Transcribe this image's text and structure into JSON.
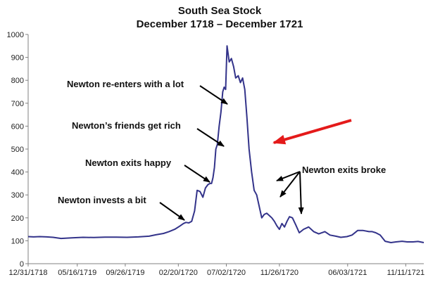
{
  "chart_data": {
    "type": "line",
    "title": "South Sea Stock",
    "subtitle": "December 1718 – December 1721",
    "xlabel": "",
    "ylabel": "",
    "ylim": [
      0,
      1000
    ],
    "yticks": [
      0,
      100,
      200,
      300,
      400,
      500,
      600,
      700,
      800,
      900,
      1000
    ],
    "xlim": [
      "1718-12-31",
      "1721-12-31"
    ],
    "xticks": [
      {
        "date": "1718-12-31",
        "label": "12/31/1718"
      },
      {
        "date": "1719-05-16",
        "label": "05/16/1719"
      },
      {
        "date": "1719-09-26",
        "label": "09/26/1719"
      },
      {
        "date": "1720-02-20",
        "label": "02/20/1720"
      },
      {
        "date": "1720-07-02",
        "label": "07/02/1720"
      },
      {
        "date": "1720-11-26",
        "label": "11/26/1720"
      },
      {
        "date": "1721-06-03",
        "label": "06/03/1721"
      },
      {
        "date": "1721-11-11",
        "label": "11/11/1721"
      }
    ],
    "grid": false,
    "line_color": "#33338a",
    "arrow_color": "#e41a1a",
    "series": [
      {
        "x": [
          "1718-12-31",
          "1719-01-15",
          "1719-02-01",
          "1719-02-20",
          "1719-03-10",
          "1719-04-01",
          "1719-05-01",
          "1719-06-01",
          "1719-07-01",
          "1719-08-01",
          "1719-09-01",
          "1719-10-01",
          "1719-11-01",
          "1719-12-01",
          "1719-12-20",
          "1720-01-10",
          "1720-01-25",
          "1720-02-10",
          "1720-02-25",
          "1720-03-05",
          "1720-03-12",
          "1720-03-20",
          "1720-03-28",
          "1720-04-05",
          "1720-04-12",
          "1720-04-20",
          "1720-04-28",
          "1720-05-05",
          "1720-05-12",
          "1720-05-18",
          "1720-05-22",
          "1720-05-26",
          "1720-05-30",
          "1720-06-03",
          "1720-06-07",
          "1720-06-12",
          "1720-06-17",
          "1720-06-22",
          "1720-06-26",
          "1720-06-30",
          "1720-07-04",
          "1720-07-10",
          "1720-07-16",
          "1720-07-22",
          "1720-07-28",
          "1720-08-04",
          "1720-08-10",
          "1720-08-16",
          "1720-08-22",
          "1720-08-28",
          "1720-09-03",
          "1720-09-10",
          "1720-09-17",
          "1720-09-24",
          "1720-10-01",
          "1720-10-08",
          "1720-10-15",
          "1720-10-22",
          "1720-10-29",
          "1720-11-05",
          "1720-11-12",
          "1720-11-19",
          "1720-11-26",
          "1720-12-03",
          "1720-12-10",
          "1720-12-17",
          "1720-12-24",
          "1721-01-01",
          "1721-01-10",
          "1721-01-20",
          "1721-02-01",
          "1721-02-15",
          "1721-03-01",
          "1721-03-15",
          "1721-04-01",
          "1721-04-15",
          "1721-05-01",
          "1721-05-15",
          "1721-06-01",
          "1721-06-15",
          "1721-07-01",
          "1721-07-15",
          "1721-08-01",
          "1721-08-10",
          "1721-08-20",
          "1721-09-01",
          "1721-09-15",
          "1721-10-01",
          "1721-10-15",
          "1721-11-01",
          "1721-11-15",
          "1721-12-01",
          "1721-12-15",
          "1721-12-31"
        ],
        "values": [
          118,
          117,
          118,
          117,
          115,
          110,
          113,
          115,
          114,
          116,
          116,
          115,
          117,
          120,
          126,
          132,
          140,
          150,
          165,
          175,
          180,
          178,
          185,
          230,
          320,
          315,
          290,
          330,
          345,
          350,
          350,
          375,
          420,
          500,
          520,
          600,
          660,
          750,
          770,
          760,
          950,
          880,
          895,
          860,
          810,
          820,
          790,
          810,
          760,
          640,
          500,
          400,
          320,
          300,
          250,
          200,
          215,
          220,
          210,
          200,
          185,
          165,
          150,
          175,
          160,
          185,
          205,
          200,
          170,
          135,
          150,
          160,
          140,
          130,
          140,
          125,
          120,
          115,
          118,
          125,
          145,
          145,
          140,
          140,
          135,
          125,
          98,
          92,
          95,
          98,
          95,
          95,
          97,
          92
        ]
      }
    ],
    "annotations": [
      {
        "text": "Newton re-enters with a lot"
      },
      {
        "text": "Newton’s friends get rich"
      },
      {
        "text": "Newton exits happy"
      },
      {
        "text": "Newton invests a bit"
      },
      {
        "text": "Newton exits broke"
      }
    ]
  }
}
